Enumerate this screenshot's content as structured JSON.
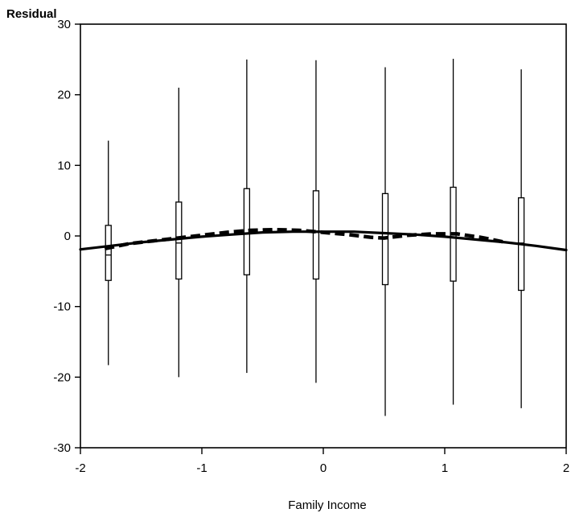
{
  "chart_data": {
    "type": "box",
    "xlabel": "Family Income",
    "ylabel": "Residual",
    "xlim": [
      -2,
      2
    ],
    "ylim": [
      -30,
      30
    ],
    "xticks": [
      "-2",
      "-1",
      "0",
      "1",
      "2"
    ],
    "yticks": [
      "30",
      "20",
      "10",
      "0",
      "-10",
      "-20",
      "-30"
    ],
    "grid": false,
    "legend": "none",
    "boxes": [
      {
        "x": -1.77,
        "whisker_low": -18.3,
        "q1": -6.3,
        "median": -2.7,
        "q3": 1.5,
        "whisker_high": 13.5
      },
      {
        "x": -1.19,
        "whisker_low": -20.0,
        "q1": -6.1,
        "median": -1.0,
        "q3": 4.8,
        "whisker_high": 21.0
      },
      {
        "x": -0.63,
        "whisker_low": -19.4,
        "q1": -5.5,
        "median": 0.4,
        "q3": 6.7,
        "whisker_high": 25.0
      },
      {
        "x": -0.06,
        "whisker_low": -20.8,
        "q1": -6.1,
        "median": 0.5,
        "q3": 6.4,
        "whisker_high": 24.9
      },
      {
        "x": 0.51,
        "whisker_low": -25.5,
        "q1": -6.9,
        "median": -0.2,
        "q3": 6.0,
        "whisker_high": 23.9
      },
      {
        "x": 1.07,
        "whisker_low": -23.9,
        "q1": -6.4,
        "median": 0.3,
        "q3": 6.9,
        "whisker_high": 25.1
      },
      {
        "x": 1.63,
        "whisker_low": -24.4,
        "q1": -7.7,
        "median": -1.0,
        "q3": 5.4,
        "whisker_high": 23.6
      }
    ],
    "series": [
      {
        "style": "solid",
        "x": [
          -2.0,
          -1.75,
          -1.5,
          -1.25,
          -1.0,
          -0.75,
          -0.5,
          -0.25,
          0.0,
          0.25,
          0.5,
          0.75,
          1.0,
          1.25,
          1.5,
          1.75,
          2.0
        ],
        "y": [
          -1.9,
          -1.4,
          -0.9,
          -0.5,
          -0.1,
          0.2,
          0.5,
          0.6,
          0.6,
          0.6,
          0.4,
          0.2,
          -0.1,
          -0.5,
          -0.9,
          -1.4,
          -2.0
        ]
      },
      {
        "style": "dashed",
        "x": [
          -1.8,
          -1.6,
          -1.4,
          -1.2,
          -1.0,
          -0.8,
          -0.6,
          -0.4,
          -0.2,
          0.0,
          0.2,
          0.4,
          0.5,
          0.7,
          0.9,
          1.1,
          1.3,
          1.5
        ],
        "y": [
          -1.8,
          -1.1,
          -0.7,
          -0.3,
          0.1,
          0.5,
          0.8,
          0.9,
          0.8,
          0.5,
          0.2,
          -0.2,
          -0.3,
          0.1,
          0.3,
          0.3,
          -0.2,
          -0.9
        ]
      }
    ]
  }
}
